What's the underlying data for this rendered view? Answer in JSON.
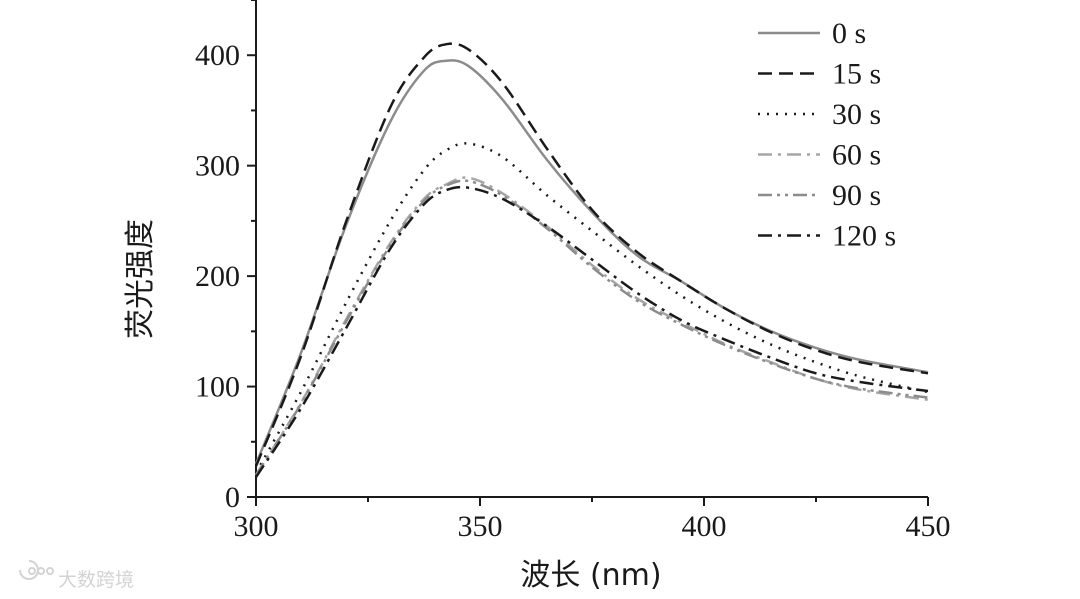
{
  "chart_data": {
    "type": "line",
    "title": "",
    "xlabel": "波长 (nm)",
    "ylabel": "荧光强度",
    "xlim": [
      300,
      450
    ],
    "ylim": [
      0,
      450
    ],
    "xticks": [
      300,
      350,
      400,
      450
    ],
    "yticks": [
      0,
      100,
      200,
      300,
      400
    ],
    "grid": false,
    "legend_position": "top-right",
    "x": [
      300,
      310,
      320,
      330,
      337.5,
      342.5,
      347.5,
      355,
      365,
      375,
      385,
      395,
      405,
      415,
      425,
      435,
      450
    ],
    "series": [
      {
        "name": "0 s",
        "color": "#8c8c8c",
        "dash": "solid",
        "values": [
          30,
          130,
          245,
          340,
          386,
          395,
          390,
          360,
          305,
          258,
          219,
          195,
          170,
          150,
          135,
          124,
          113
        ]
      },
      {
        "name": "15 s",
        "color": "#1a1a1a",
        "dash": "dashed",
        "values": [
          28,
          127,
          248,
          353,
          398,
          410,
          405,
          375,
          315,
          260,
          222,
          195,
          170,
          149,
          133,
          122,
          112
        ]
      },
      {
        "name": "30 s",
        "color": "#1a1a1a",
        "dash": "dotted",
        "values": [
          22,
          95,
          175,
          250,
          296,
          314,
          320,
          308,
          273,
          241,
          210,
          182,
          158,
          138,
          122,
          109,
          95
        ]
      },
      {
        "name": "60 s",
        "color": "#a6a6a6",
        "dash": "dashdot",
        "values": [
          20,
          85,
          160,
          230,
          270,
          283,
          289,
          275,
          245,
          210,
          180,
          158,
          138,
          122,
          107,
          97,
          88
        ]
      },
      {
        "name": "90 s",
        "color": "#8c8c8c",
        "dash": "dashdotdot",
        "values": [
          20,
          84,
          158,
          228,
          268,
          282,
          286,
          273,
          243,
          208,
          178,
          156,
          137,
          121,
          107,
          98,
          90
        ]
      },
      {
        "name": "120 s",
        "color": "#1a1a1a",
        "dash": "dashdot",
        "values": [
          18,
          80,
          152,
          225,
          265,
          278,
          280,
          270,
          245,
          215,
          185,
          160,
          142,
          126,
          112,
          104,
          96
        ]
      }
    ]
  },
  "watermark": {
    "text": "大数跨境"
  }
}
